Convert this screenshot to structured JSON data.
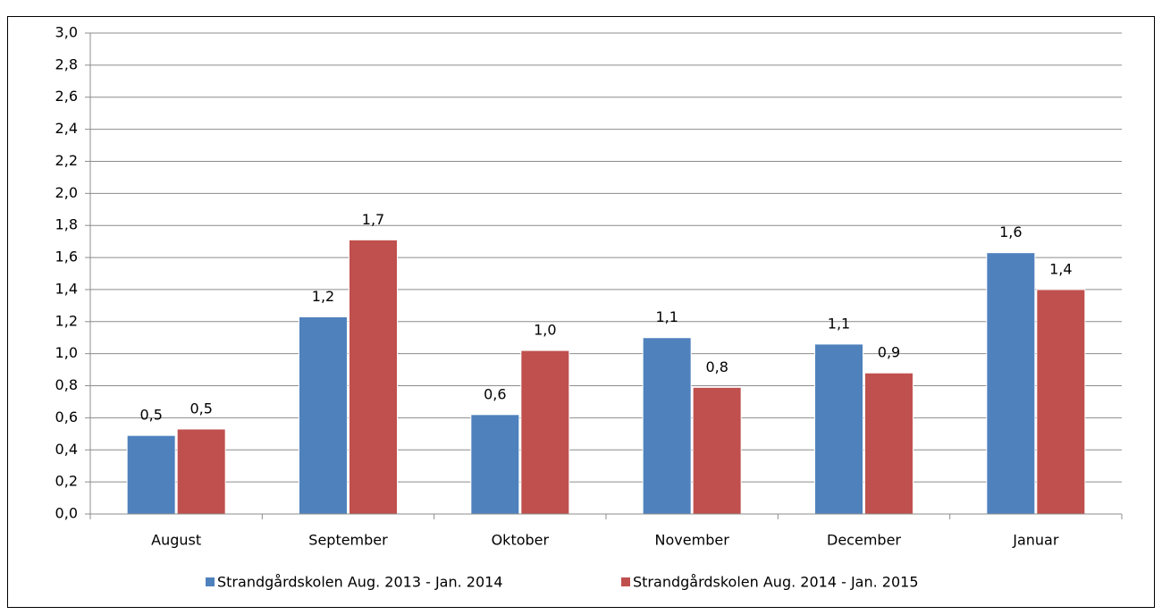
{
  "chart_data": {
    "type": "bar",
    "categories": [
      "August",
      "September",
      "Oktober",
      "November",
      "December",
      "Januar"
    ],
    "series": [
      {
        "name": "Strandgårdskolen Aug. 2013 - Jan. 2014",
        "color": "#4f81bd",
        "values": [
          0.49,
          1.23,
          0.62,
          1.1,
          1.06,
          1.63
        ],
        "value_labels": [
          "0,5",
          "1,2",
          "0,6",
          "1,1",
          "1,1",
          "1,6"
        ]
      },
      {
        "name": "Strandgårdskolen Aug. 2014 - Jan. 2015",
        "color": "#c0504d",
        "values": [
          0.53,
          1.71,
          1.02,
          0.79,
          0.88,
          1.4
        ],
        "value_labels": [
          "0,5",
          "1,7",
          "1,0",
          "0,8",
          "0,9",
          "1,4"
        ]
      }
    ],
    "ylim": [
      0,
      3
    ],
    "yticks": [
      {
        "value": 0,
        "label": "0,0"
      },
      {
        "value": 0.2,
        "label": "0,2"
      },
      {
        "value": 0.4,
        "label": "0,4"
      },
      {
        "value": 0.6,
        "label": "0,6"
      },
      {
        "value": 0.8,
        "label": "0,8"
      },
      {
        "value": 1,
        "label": "1,0"
      },
      {
        "value": 1.2,
        "label": "1,2"
      },
      {
        "value": 1.4,
        "label": "1,4"
      },
      {
        "value": 1.6,
        "label": "1,6"
      },
      {
        "value": 1.8,
        "label": "1,8"
      },
      {
        "value": 2,
        "label": "2,0"
      },
      {
        "value": 2.2,
        "label": "2,2"
      },
      {
        "value": 2.4,
        "label": "2,4"
      },
      {
        "value": 2.6,
        "label": "2,6"
      },
      {
        "value": 2.8,
        "label": "2,8"
      },
      {
        "value": 3,
        "label": "3,0"
      }
    ],
    "grid": true,
    "legend": "bottom"
  }
}
